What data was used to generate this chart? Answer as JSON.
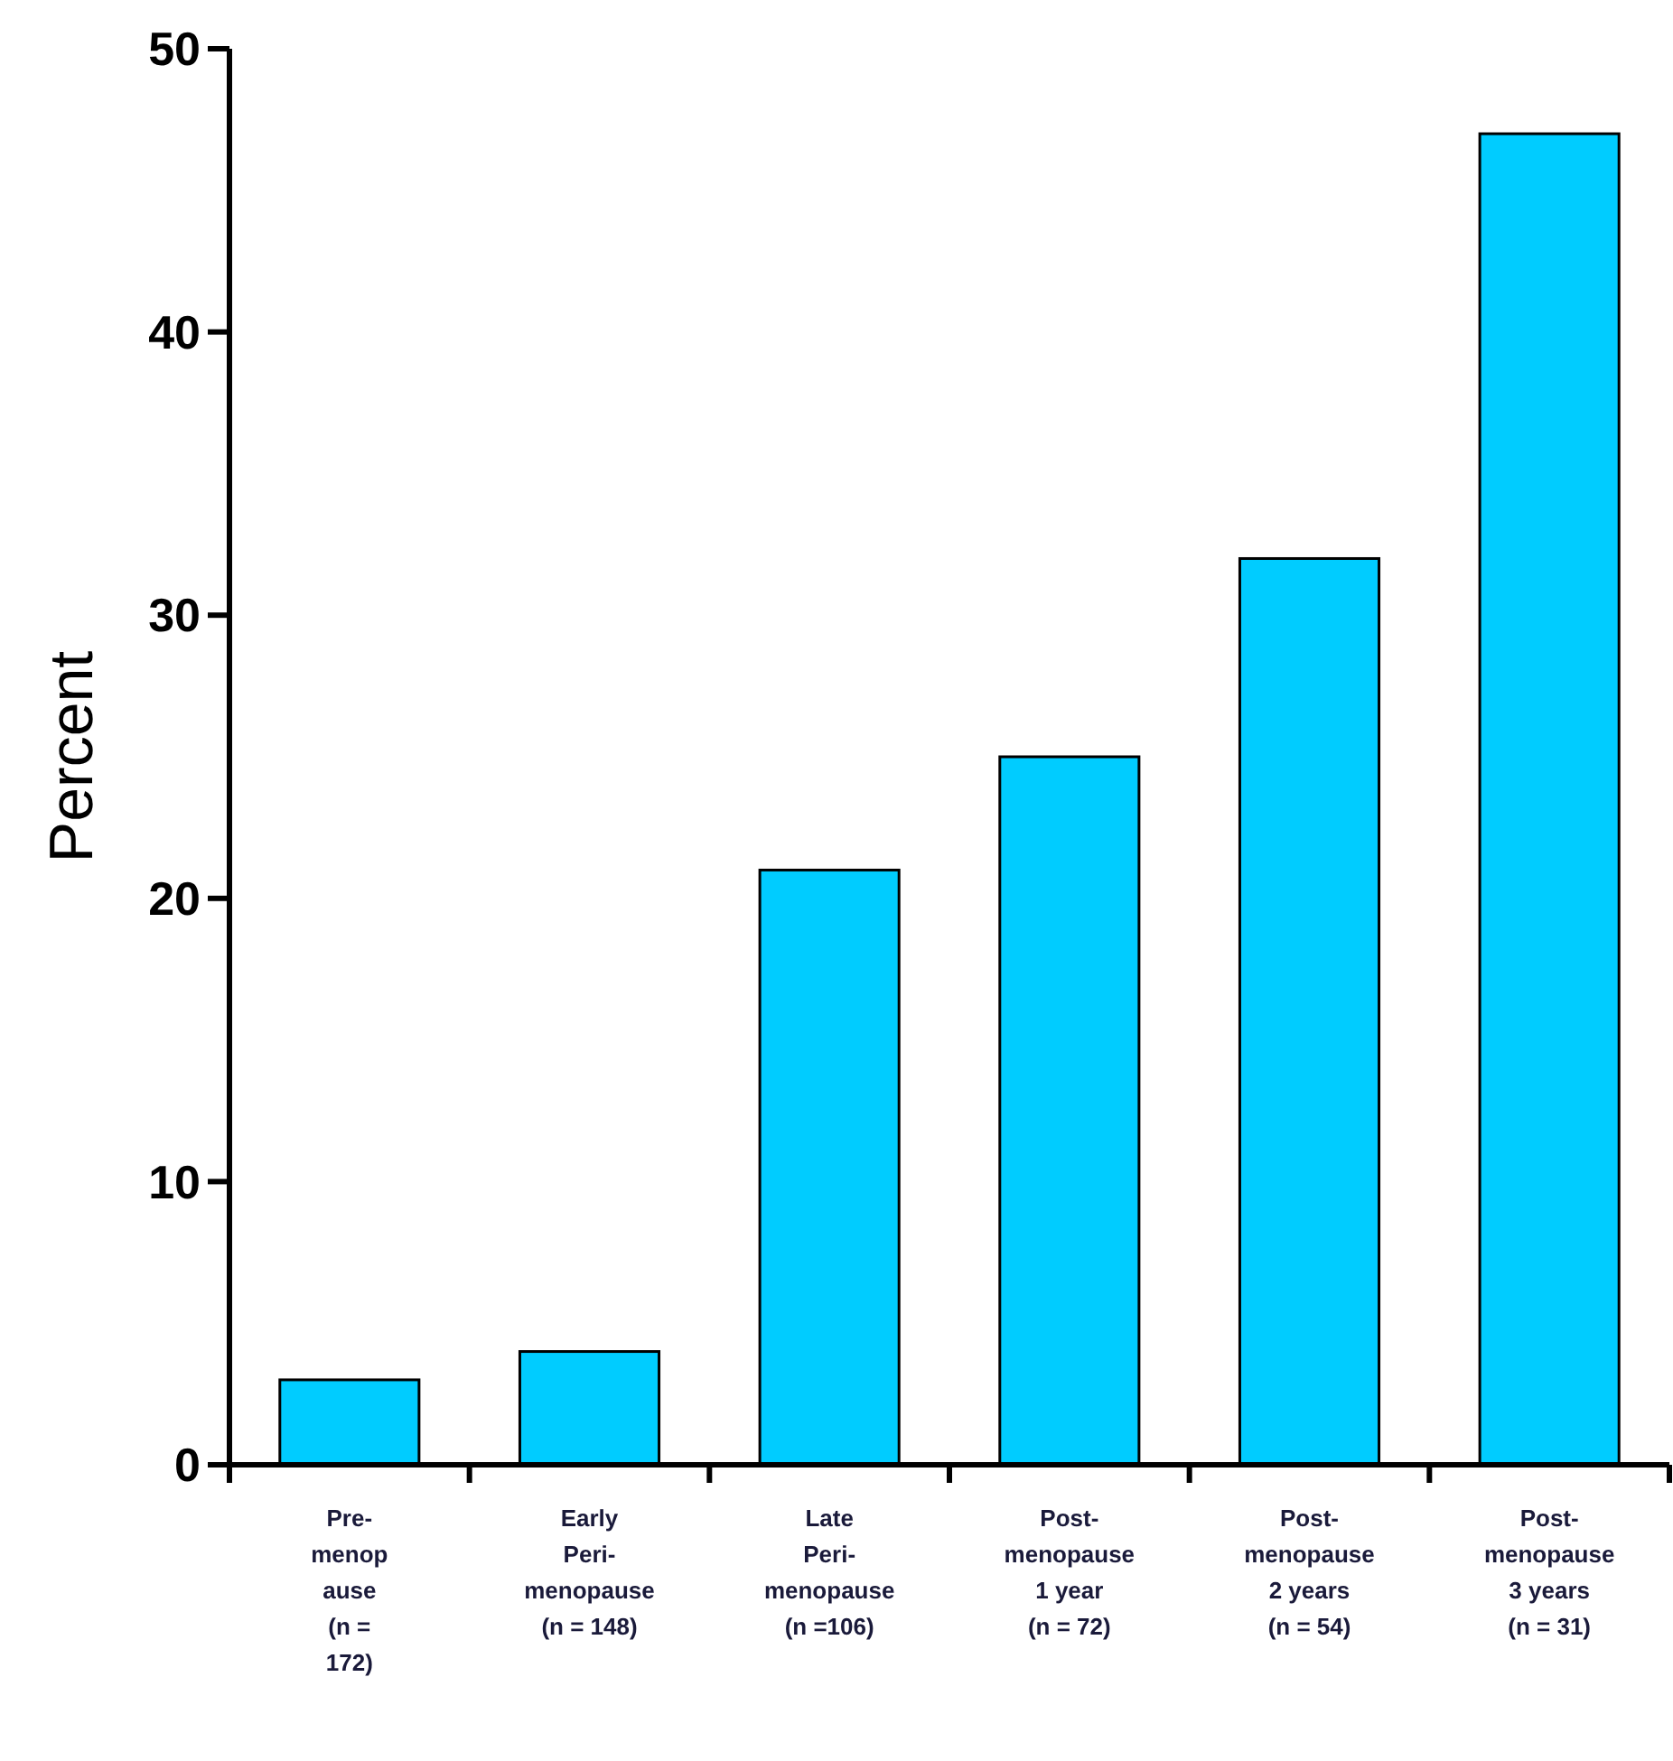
{
  "chart_data": {
    "type": "bar",
    "ylabel": "Percent",
    "categories": [
      "Pre-\nmenop\nause\n(n =\n172)",
      "Early\nPeri-\nmenopause\n(n = 148)",
      "Late\nPeri-\nmenopause\n(n =106)",
      "Post-\nmenopause\n1 year\n(n = 72)",
      "Post-\nmenopause\n2 years\n(n = 54)",
      "Post-\nmenopause\n3 years\n(n = 31)"
    ],
    "values": [
      3,
      4,
      21,
      25,
      32,
      47
    ],
    "color": "#00ccff",
    "ylim": [
      0,
      50
    ],
    "yticks": [
      0,
      10,
      20,
      30,
      40,
      50
    ],
    "grid": false
  }
}
